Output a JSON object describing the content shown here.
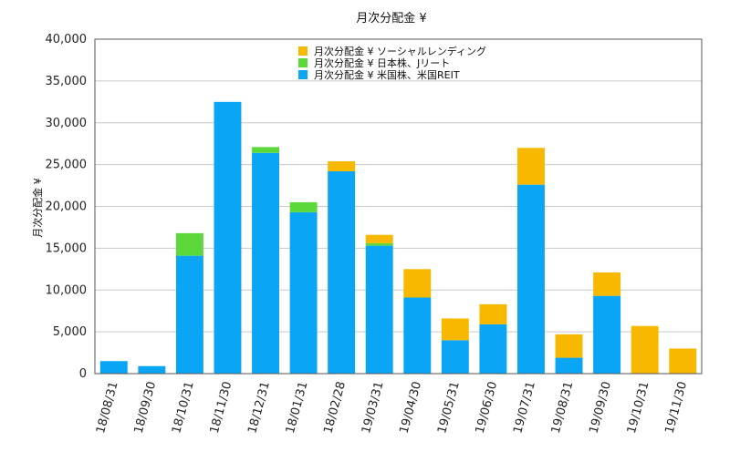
{
  "chart_data": {
    "type": "bar",
    "stacked": true,
    "title": "月次分配金 ¥",
    "ylabel": "月次分配金 ¥",
    "xlabel": "",
    "ylim": [
      0,
      40000
    ],
    "yticks": [
      "0",
      "5,000",
      "10,000",
      "15,000",
      "20,000",
      "25,000",
      "30,000",
      "35,000",
      "40,000"
    ],
    "grid": true,
    "legend_position": "top",
    "categories": [
      "18/08/31",
      "18/09/30",
      "18/10/31",
      "18/11/30",
      "18/12/31",
      "18/01/31",
      "18/02/28",
      "19/03/31",
      "19/04/30",
      "19/05/31",
      "19/06/30",
      "19/07/31",
      "19/08/31",
      "19/09/30",
      "19/10/31",
      "19/11/30"
    ],
    "series": [
      {
        "name": "月次分配金 ¥ 米国株、米国REIT",
        "color": "#0aa5f5",
        "values": [
          1500,
          900,
          14100,
          32500,
          26400,
          19300,
          24200,
          15300,
          9100,
          4000,
          5900,
          22600,
          1900,
          9300,
          0,
          0
        ]
      },
      {
        "name": "月次分配金 ¥ 日本株、Jリート",
        "color": "#5dd83a",
        "values": [
          0,
          0,
          2700,
          0,
          700,
          1200,
          0,
          300,
          0,
          0,
          0,
          0,
          0,
          0,
          0,
          0
        ]
      },
      {
        "name": "月次分配金 ¥ ソーシャルレンディング",
        "color": "#f8b800",
        "values": [
          0,
          0,
          0,
          0,
          0,
          0,
          1200,
          1000,
          3400,
          2600,
          2400,
          4400,
          2800,
          2800,
          5700,
          3000
        ]
      }
    ],
    "legend_order": [
      2,
      1,
      0
    ]
  }
}
